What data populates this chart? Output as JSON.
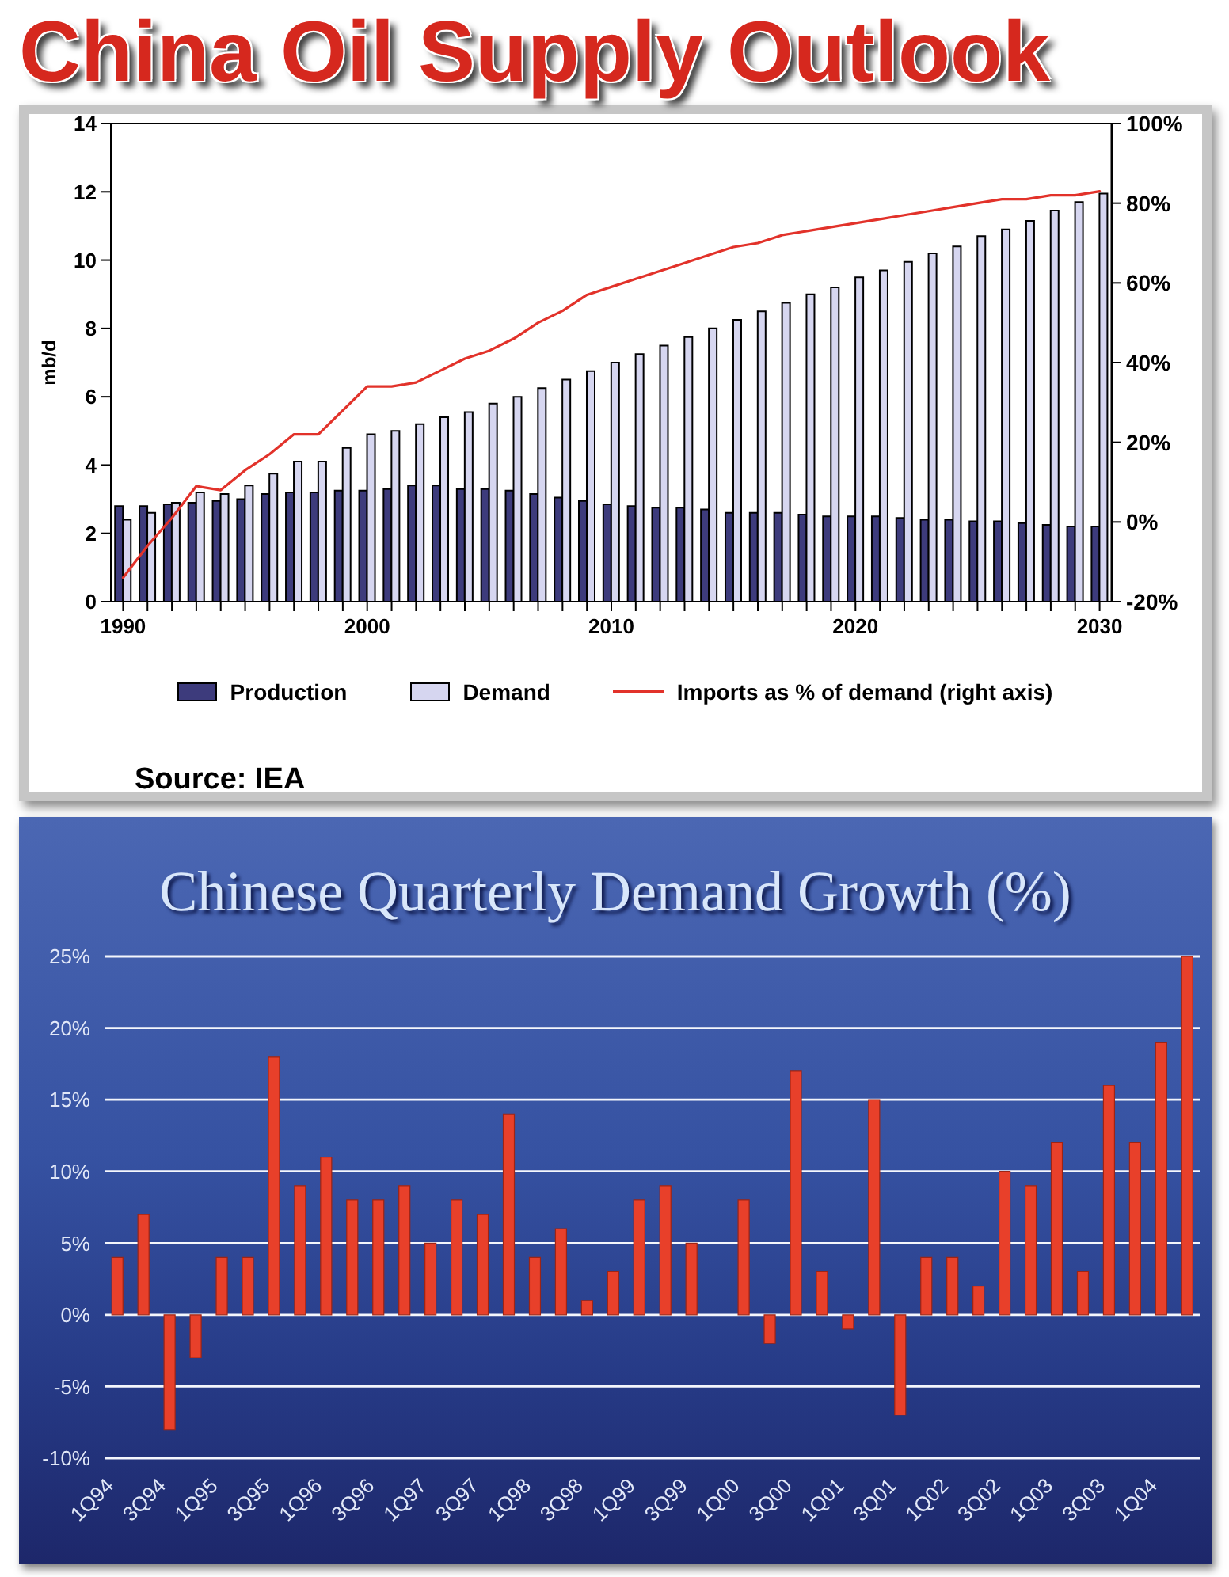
{
  "chart_data": [
    {
      "type": "bar",
      "title": "China Oil Supply Outlook",
      "ylabel": "mb/d",
      "categories": [
        "1990",
        null,
        null,
        null,
        null,
        null,
        null,
        null,
        null,
        null,
        "2000",
        null,
        null,
        null,
        null,
        null,
        null,
        null,
        null,
        null,
        "2010",
        null,
        null,
        null,
        null,
        null,
        null,
        null,
        null,
        null,
        "2020",
        null,
        null,
        null,
        null,
        null,
        null,
        null,
        null,
        null,
        "2030"
      ],
      "series": [
        {
          "name": "Production",
          "color": "#3d3b7c",
          "values": [
            2.8,
            2.8,
            2.85,
            2.9,
            2.95,
            3.0,
            3.15,
            3.2,
            3.2,
            3.25,
            3.25,
            3.3,
            3.4,
            3.4,
            3.3,
            3.3,
            3.25,
            3.15,
            3.05,
            2.95,
            2.85,
            2.8,
            2.75,
            2.75,
            2.7,
            2.6,
            2.6,
            2.6,
            2.55,
            2.5,
            2.5,
            2.5,
            2.45,
            2.4,
            2.4,
            2.35,
            2.35,
            2.3,
            2.25,
            2.2,
            2.2
          ]
        },
        {
          "name": "Demand",
          "color": "#d6d6f0",
          "values": [
            2.4,
            2.6,
            2.9,
            3.2,
            3.15,
            3.4,
            3.75,
            4.1,
            4.1,
            4.5,
            4.9,
            5.0,
            5.2,
            5.4,
            5.55,
            5.8,
            6.0,
            6.25,
            6.5,
            6.75,
            7.0,
            7.25,
            7.5,
            7.75,
            8.0,
            8.25,
            8.5,
            8.75,
            9.0,
            9.2,
            9.5,
            9.7,
            9.95,
            10.2,
            10.4,
            10.7,
            10.9,
            11.15,
            11.45,
            11.7,
            11.95
          ]
        },
        {
          "name": "Imports as % of demand (right axis)",
          "type": "line",
          "axis": "y2",
          "color": "#e2322a",
          "values": [
            -14,
            -6,
            1,
            9,
            8,
            13,
            17,
            22,
            22,
            28,
            34,
            34,
            35,
            38,
            41,
            43,
            46,
            50,
            53,
            57,
            59,
            61,
            63,
            65,
            67,
            69,
            70,
            72,
            73,
            74,
            75,
            76,
            77,
            78,
            79,
            80,
            81,
            81,
            82,
            82,
            83
          ]
        }
      ],
      "ylim": [
        0,
        14
      ],
      "yticks": [
        0,
        2,
        4,
        6,
        8,
        10,
        12,
        14
      ],
      "y2lim": [
        -20,
        100
      ],
      "y2ticks": [
        {
          "value": -20,
          "label": "-20%"
        },
        {
          "value": 0,
          "label": "0%"
        },
        {
          "value": 20,
          "label": "20%"
        },
        {
          "value": 40,
          "label": "40%"
        },
        {
          "value": 60,
          "label": "60%"
        },
        {
          "value": 80,
          "label": "80%"
        },
        {
          "value": 100,
          "label": "100%"
        }
      ],
      "legend": "bottom",
      "annotations": [
        "Source: IEA"
      ]
    },
    {
      "type": "bar",
      "title": "Chinese Quarterly Demand Growth (%)",
      "categories": [
        "1Q94",
        null,
        "3Q94",
        null,
        "1Q95",
        null,
        "3Q95",
        null,
        "1Q96",
        null,
        "3Q96",
        null,
        "1Q97",
        null,
        "3Q97",
        null,
        "1Q98",
        null,
        "3Q98",
        null,
        "1Q99",
        null,
        "3Q99",
        null,
        "1Q00",
        null,
        "3Q00",
        null,
        "1Q01",
        null,
        "3Q01",
        null,
        "1Q02",
        null,
        "3Q02",
        null,
        "1Q03",
        null,
        "3Q03",
        null,
        "1Q04",
        null
      ],
      "values": [
        4,
        7,
        -8,
        -3,
        4,
        4,
        18,
        9,
        11,
        8,
        8,
        9,
        5,
        8,
        7,
        14,
        4,
        6,
        1,
        3,
        8,
        9,
        5,
        null,
        8,
        -2,
        17,
        3,
        -1,
        15,
        -7,
        4,
        4,
        2,
        10,
        9,
        12,
        3,
        16,
        12,
        19,
        25
      ],
      "color": "#e8402a",
      "ylim": [
        -10,
        25
      ],
      "yticks": [
        {
          "value": -10,
          "label": "-10%"
        },
        {
          "value": -5,
          "label": "-5%"
        },
        {
          "value": 0,
          "label": "0%"
        },
        {
          "value": 5,
          "label": "5%"
        },
        {
          "value": 10,
          "label": "10%"
        },
        {
          "value": 15,
          "label": "15%"
        },
        {
          "value": 20,
          "label": "20%"
        },
        {
          "value": 25,
          "label": "25%"
        }
      ],
      "grid": "y"
    }
  ]
}
